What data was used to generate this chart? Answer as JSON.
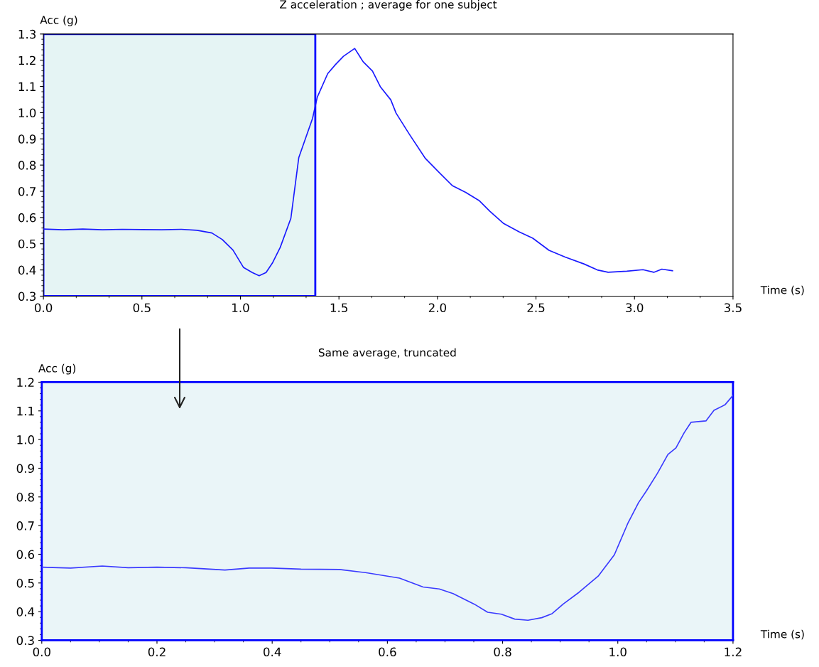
{
  "chart_data": [
    {
      "type": "line",
      "title": "Z acceleration ; average for one subject",
      "xlabel": "Time (s)",
      "ylabel": "Acc (g)",
      "xlim": [
        0,
        3.5
      ],
      "xticks": [
        {
          "value": 0,
          "label": "0.0"
        },
        0.5,
        {
          "value": 1,
          "label": "1.0"
        },
        1.5,
        {
          "value": 2,
          "label": "2.0"
        },
        2.5,
        {
          "value": 3,
          "label": "3.0"
        },
        3.5
      ],
      "ylim": [
        0.3,
        1.3
      ],
      "yticks": [
        0.3,
        0.4,
        0.5,
        0.6,
        0.7,
        0.8,
        0.9,
        {
          "value": 1,
          "label": "1.0"
        },
        1.1,
        1.2,
        1.3
      ],
      "grid": false,
      "legend": false,
      "marker": "none",
      "line_style": "solid",
      "bands": [
        {
          "axis": "x",
          "from": 0,
          "to": 1.38,
          "color": "#e5f4f4"
        }
      ],
      "series": [
        {
          "color": "#1a1aff",
          "x": [
            0,
            0.1,
            0.2,
            0.3,
            0.4,
            0.5,
            0.6,
            0.7,
            0.78,
            0.855,
            0.908,
            0.962,
            1.015,
            1.06,
            1.095,
            1.13,
            1.162,
            1.202,
            1.256,
            1.296,
            1.366,
            1.39,
            1.443,
            1.483,
            1.523,
            1.58,
            1.623,
            1.67,
            1.71,
            1.763,
            1.79,
            1.857,
            1.939,
            2.007,
            2.075,
            2.143,
            2.211,
            2.266,
            2.334,
            2.416,
            2.484,
            2.566,
            2.648,
            2.743,
            2.811,
            2.866,
            2.961,
            3.043,
            3.098,
            3.139,
            3.193
          ],
          "values": [
            0.556,
            0.553,
            0.556,
            0.553,
            0.555,
            0.554,
            0.553,
            0.555,
            0.551,
            0.541,
            0.516,
            0.476,
            0.41,
            0.39,
            0.378,
            0.39,
            0.426,
            0.486,
            0.597,
            0.828,
            0.978,
            1.059,
            1.149,
            1.184,
            1.215,
            1.245,
            1.194,
            1.159,
            1.099,
            1.049,
            0.998,
            0.918,
            0.825,
            0.773,
            0.722,
            0.696,
            0.665,
            0.624,
            0.578,
            0.545,
            0.521,
            0.475,
            0.449,
            0.423,
            0.4,
            0.391,
            0.395,
            0.401,
            0.391,
            0.403,
            0.397
          ]
        }
      ]
    },
    {
      "type": "line",
      "title": "Same average, truncated",
      "xlabel": "Time (s)",
      "ylabel": "Acc (g)",
      "xlim": [
        0,
        1.2
      ],
      "xticks": [
        {
          "value": 0,
          "label": "0.0"
        },
        0.2,
        0.4,
        0.6,
        0.8,
        {
          "value": 1,
          "label": "1.0"
        },
        1.2
      ],
      "ylim": [
        0.3,
        1.2
      ],
      "yticks": [
        0.3,
        0.4,
        0.5,
        0.6,
        0.7,
        0.8,
        0.9,
        {
          "value": 1,
          "label": "1.0"
        },
        1.1,
        1.2
      ],
      "grid": false,
      "legend": false,
      "marker": "none",
      "line_style": "solid",
      "series": [
        {
          "color": "#3a3aff",
          "x": [
            0,
            0.05,
            0.105,
            0.15,
            0.2,
            0.25,
            0.318,
            0.36,
            0.399,
            0.45,
            0.517,
            0.562,
            0.621,
            0.662,
            0.69,
            0.714,
            0.751,
            0.774,
            0.798,
            0.821,
            0.844,
            0.868,
            0.886,
            0.905,
            0.933,
            0.966,
            0.994,
            1.017,
            1.036,
            1.05,
            1.069,
            1.087,
            1.101,
            1.115,
            1.127,
            1.153,
            1.167,
            1.186,
            1.2
          ],
          "values": [
            0.555,
            0.552,
            0.559,
            0.553,
            0.555,
            0.553,
            0.545,
            0.552,
            0.552,
            0.548,
            0.547,
            0.536,
            0.517,
            0.486,
            0.479,
            0.463,
            0.426,
            0.398,
            0.391,
            0.374,
            0.37,
            0.379,
            0.393,
            0.426,
            0.468,
            0.524,
            0.598,
            0.706,
            0.78,
            0.822,
            0.883,
            0.948,
            0.971,
            1.023,
            1.06,
            1.065,
            1.102,
            1.121,
            1.154
          ]
        }
      ]
    }
  ]
}
